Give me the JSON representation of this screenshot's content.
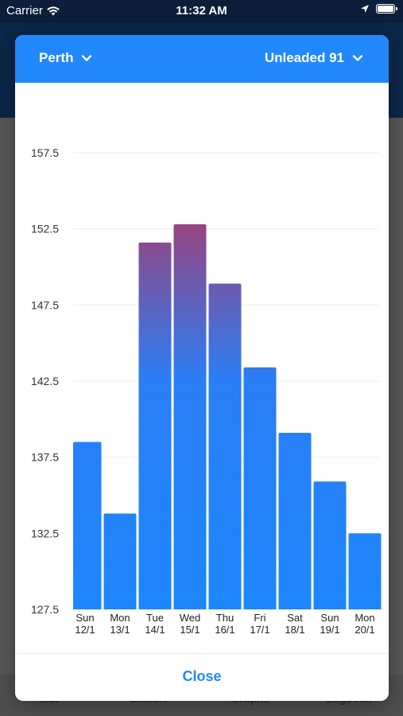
{
  "status_bar": {
    "carrier": "Carrier",
    "time": "11:32 AM"
  },
  "modal": {
    "location": "Perth",
    "fuel_type": "Unleaded 91",
    "close_label": "Close"
  },
  "tab_bar": {
    "items": [
      "List",
      "Station",
      "Graphs",
      "Logbook"
    ]
  },
  "colors": {
    "accent": "#2188fb",
    "bar_low": "#1e86fb",
    "bar_high": "#c72a4c"
  },
  "chart_data": {
    "type": "bar",
    "categories": [
      [
        "Sun",
        "12/1"
      ],
      [
        "Mon",
        "13/1"
      ],
      [
        "Tue",
        "14/1"
      ],
      [
        "Wed",
        "15/1"
      ],
      [
        "Thu",
        "16/1"
      ],
      [
        "Fri",
        "17/1"
      ],
      [
        "Sat",
        "18/1"
      ],
      [
        "Sun",
        "19/1"
      ],
      [
        "Mon",
        "20/1"
      ]
    ],
    "values": [
      138.5,
      133.8,
      151.6,
      152.8,
      148.9,
      143.4,
      139.1,
      135.9,
      132.5
    ],
    "ylim": [
      127.5,
      157.5
    ],
    "yticks": [
      "127.5",
      "132.5",
      "137.5",
      "142.5",
      "147.5",
      "152.5",
      "157.5"
    ],
    "grid": true
  }
}
